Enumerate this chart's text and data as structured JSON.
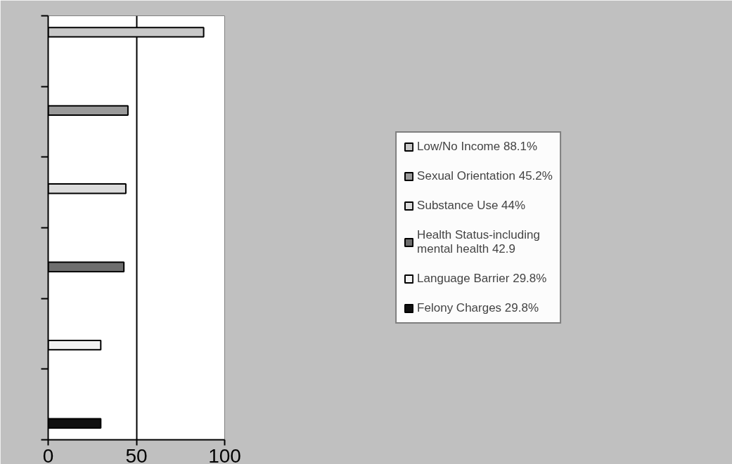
{
  "chart_data": {
    "type": "bar",
    "orientation": "horizontal",
    "categories": [
      null,
      null,
      null,
      null,
      null,
      null
    ],
    "series": [
      {
        "name": "Low/No Income 88.1%",
        "color": "#c8c8c8",
        "values": [
          88.1,
          null,
          null,
          null,
          null,
          null
        ]
      },
      {
        "name": "Sexual Orientation 45.2%",
        "color": "#9a9a9a",
        "values": [
          null,
          45.2,
          null,
          null,
          null,
          null
        ]
      },
      {
        "name": "Substance Use 44%",
        "color": "#dcdcdc",
        "values": [
          null,
          null,
          44,
          null,
          null,
          null
        ]
      },
      {
        "name": "Health Status-including mental health 42.9",
        "color": "#6e6e6e",
        "values": [
          null,
          null,
          null,
          42.9,
          null,
          null
        ]
      },
      {
        "name": "Language Barrier 29.8%",
        "color": "#f2f2f2",
        "values": [
          null,
          null,
          null,
          null,
          29.8,
          null
        ]
      },
      {
        "name": "Felony Charges 29.8%",
        "color": "#101010",
        "values": [
          null,
          null,
          null,
          null,
          null,
          29.8
        ]
      }
    ],
    "xlim": [
      0,
      100
    ],
    "xticks": [
      0,
      50,
      100
    ],
    "grid": "x",
    "legend": "right",
    "tick_labels": "x"
  }
}
